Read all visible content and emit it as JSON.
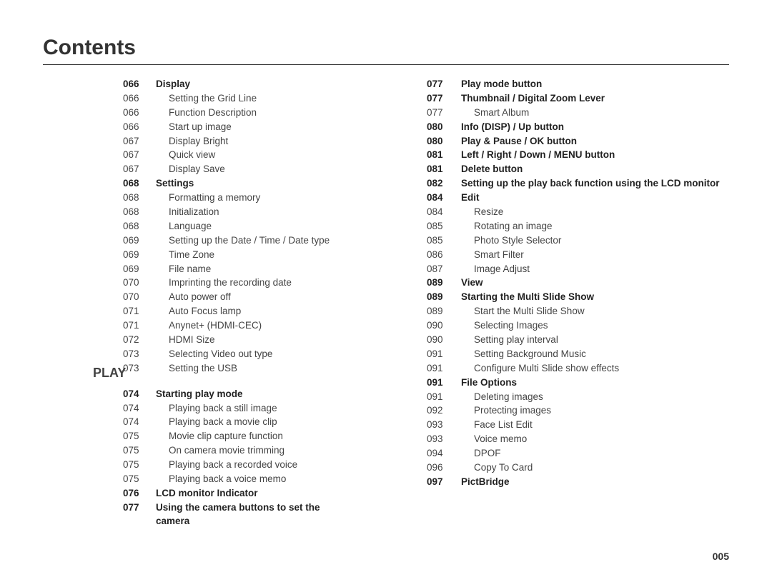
{
  "title": "Contents",
  "pagenum": "005",
  "section_label": "PLAY",
  "left": [
    {
      "p": "066",
      "t": "Display",
      "b": true
    },
    {
      "p": "066",
      "t": "Setting the Grid Line"
    },
    {
      "p": "066",
      "t": "Function Description"
    },
    {
      "p": "066",
      "t": "Start up image"
    },
    {
      "p": "067",
      "t": "Display Bright"
    },
    {
      "p": "067",
      "t": "Quick view"
    },
    {
      "p": "067",
      "t": "Display Save"
    },
    {
      "p": "068",
      "t": "Settings",
      "b": true
    },
    {
      "p": "068",
      "t": "Formatting a memory"
    },
    {
      "p": "068",
      "t": "Initialization"
    },
    {
      "p": "068",
      "t": "Language"
    },
    {
      "p": "069",
      "t": "Setting up the Date / Time / Date type"
    },
    {
      "p": "069",
      "t": "Time Zone"
    },
    {
      "p": "069",
      "t": "File name"
    },
    {
      "p": "070",
      "t": "Imprinting the recording date"
    },
    {
      "p": "070",
      "t": "Auto power off"
    },
    {
      "p": "071",
      "t": "Auto Focus lamp"
    },
    {
      "p": "071",
      "t": "Anynet+ (HDMI-CEC)"
    },
    {
      "p": "072",
      "t": "HDMI Size"
    },
    {
      "p": "073",
      "t": "Selecting Video out type"
    },
    {
      "p": "073",
      "t": "Setting the USB"
    },
    {
      "gap": true
    },
    {
      "p": "074",
      "t": "Starting play mode",
      "b": true
    },
    {
      "p": "074",
      "t": "Playing back a still image"
    },
    {
      "p": "074",
      "t": "Playing back a movie clip"
    },
    {
      "p": "075",
      "t": "Movie clip capture function"
    },
    {
      "p": "075",
      "t": "On camera movie trimming"
    },
    {
      "p": "075",
      "t": "Playing back a recorded voice"
    },
    {
      "p": "075",
      "t": "Playing back a voice memo"
    },
    {
      "p": "076",
      "t": "LCD monitor Indicator",
      "b": true
    },
    {
      "p": "077",
      "t": "Using the camera buttons to set the camera",
      "b": true
    }
  ],
  "right": [
    {
      "p": "077",
      "t": "Play mode button",
      "b": true
    },
    {
      "p": "077",
      "t": "Thumbnail / Digital Zoom  Lever",
      "b": true
    },
    {
      "p": "077",
      "t": "Smart Album"
    },
    {
      "p": "080",
      "t": "Info (DISP) / Up button",
      "b": true
    },
    {
      "p": "080",
      "t": "Play & Pause / OK button",
      "b": true
    },
    {
      "p": "081",
      "t": "Left / Right / Down / MENU button",
      "b": true
    },
    {
      "p": "081",
      "t": "Delete button",
      "b": true
    },
    {
      "p": "082",
      "t": "Setting up the play back function using the LCD monitor",
      "b": true
    },
    {
      "p": "084",
      "t": "Edit",
      "b": true
    },
    {
      "p": "084",
      "t": "Resize"
    },
    {
      "p": "085",
      "t": "Rotating an image"
    },
    {
      "p": "085",
      "t": "Photo Style Selector"
    },
    {
      "p": "086",
      "t": "Smart Filter"
    },
    {
      "p": "087",
      "t": "Image Adjust"
    },
    {
      "p": "089",
      "t": "View",
      "b": true
    },
    {
      "p": "089",
      "t": "Starting the Multi Slide Show",
      "b": true
    },
    {
      "p": "089",
      "t": "Start the Multi Slide Show"
    },
    {
      "p": "090",
      "t": "Selecting Images"
    },
    {
      "p": "090",
      "t": "Setting play interval"
    },
    {
      "p": "091",
      "t": "Setting Background Music"
    },
    {
      "p": "091",
      "t": "Configure Multi Slide show effects"
    },
    {
      "p": "091",
      "t": "File Options",
      "b": true
    },
    {
      "p": "091",
      "t": "Deleting images"
    },
    {
      "p": "092",
      "t": "Protecting images"
    },
    {
      "p": "093",
      "t": "Face List Edit"
    },
    {
      "p": "093",
      "t": "Voice memo"
    },
    {
      "p": "094",
      "t": "DPOF"
    },
    {
      "p": "096",
      "t": "Copy To Card"
    },
    {
      "p": "097",
      "t": "PictBridge",
      "b": true
    }
  ]
}
